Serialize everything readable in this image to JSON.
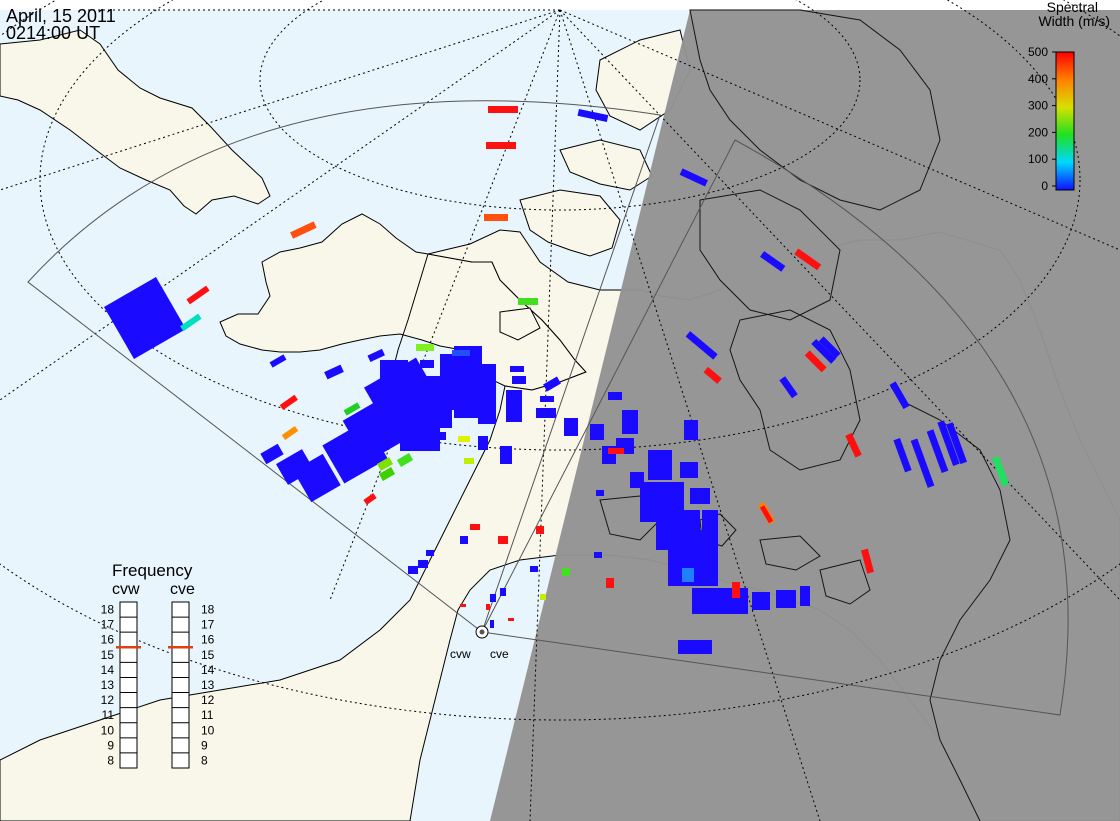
{
  "header": {
    "date": "April, 15 2011",
    "time": "0214:00 UT"
  },
  "colorbar": {
    "title_line1": "Spectral",
    "title_line2": "Width (m/s)",
    "ticks": [
      "500",
      "400",
      "300",
      "200",
      "100",
      "0"
    ]
  },
  "frequency_panel": {
    "title": "Frequency",
    "radars": [
      {
        "name": "cvw",
        "value": 15.5
      },
      {
        "name": "cve",
        "value": 15.5
      }
    ],
    "scale_labels": [
      "18",
      "17",
      "16",
      "15",
      "14",
      "13",
      "12",
      "11",
      "10",
      "9",
      "8"
    ]
  },
  "radar_sites": [
    {
      "name": "cvw"
    },
    {
      "name": "cve"
    }
  ],
  "colors": {
    "ocean": "#e8f5fc",
    "land": "#f9f6ea",
    "night": "#939393",
    "scatter_blue": "#1a0aff",
    "marker": "#e04010"
  }
}
